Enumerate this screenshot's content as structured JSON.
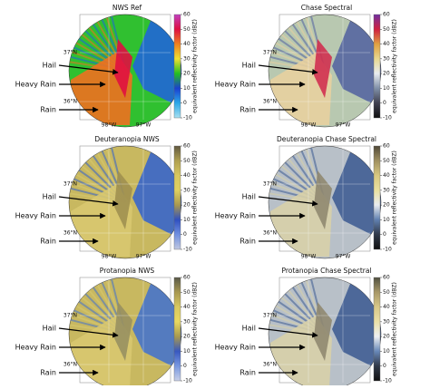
{
  "panels": [
    {
      "title": "NWS Ref",
      "colors": [
        "#a8e0f0",
        "#2aa8e8",
        "#1a40d0",
        "#22c022",
        "#f0e030",
        "#f08020",
        "#e01040",
        "#c040c0"
      ],
      "disk": "#30c030",
      "storm": "#f07020",
      "core": "#e01040",
      "clear": "#2060e0"
    },
    {
      "title": "Chase Spectral",
      "colors": [
        "#101010",
        "#404050",
        "#8090a8",
        "#e8ecf0",
        "#e8d890",
        "#e0a040",
        "#d02040",
        "#7030a0"
      ],
      "disk": "#b8c8b0",
      "storm": "#e8d0a0",
      "core": "#d03050",
      "clear": "#5060a0"
    },
    {
      "title": "Deuteranopia NWS",
      "colors": [
        "#c0c8e0",
        "#7090e0",
        "#3050c0",
        "#a89850",
        "#e0d060",
        "#d8c860",
        "#b0a050",
        "#605840"
      ],
      "disk": "#c8b860",
      "storm": "#d8c870",
      "core": "#a09050",
      "clear": "#3060d0"
    },
    {
      "title": "Deuteranopia Chase Spectral",
      "colors": [
        "#101010",
        "#303848",
        "#6080b0",
        "#e8ecf0",
        "#e8e0a0",
        "#d8c880",
        "#a09060",
        "#504838"
      ],
      "disk": "#b8c0c8",
      "storm": "#d8d0a8",
      "core": "#908870",
      "clear": "#3a5890"
    },
    {
      "title": "Protanopia NWS",
      "colors": [
        "#c8d0e8",
        "#7898e0",
        "#3858c0",
        "#a89a50",
        "#e8d860",
        "#d8c860",
        "#a89850",
        "#585848"
      ],
      "disk": "#c8b860",
      "storm": "#d8c870",
      "core": "#989060",
      "clear": "#4070d0"
    },
    {
      "title": "Protanopia Chase Spectral",
      "colors": [
        "#101010",
        "#303848",
        "#6888b8",
        "#eef0f2",
        "#eae0a8",
        "#d8c888",
        "#a89868",
        "#505040"
      ],
      "disk": "#b8c0c8",
      "storm": "#d8d0a8",
      "core": "#908870",
      "clear": "#3a5890"
    }
  ],
  "annotations": [
    "Hail",
    "Heavy Rain",
    "Rain"
  ],
  "lat_labels": [
    "37°N",
    "36°N"
  ],
  "lon_labels": [
    "98°W",
    "97°W"
  ],
  "colorbar": {
    "label": "equivalent reflectivity factor (dBZ)",
    "lim": [
      -10,
      60
    ],
    "ticks": [
      60,
      50,
      40,
      30,
      20,
      10,
      0,
      -10
    ]
  }
}
